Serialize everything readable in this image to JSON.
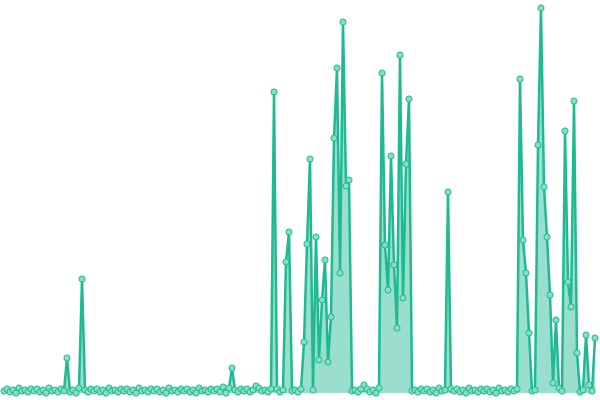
{
  "chart_data": {
    "type": "line",
    "color": "#1fb992",
    "marker_color": "#86dfc4",
    "area": true,
    "markers": true,
    "ylim": [
      0,
      393
    ],
    "values": [
      2,
      4,
      1,
      3,
      0,
      5,
      2,
      3,
      1,
      4,
      2,
      4,
      1,
      3,
      0,
      5,
      2,
      3,
      1,
      4,
      2,
      35,
      1,
      3,
      0,
      5,
      114,
      3,
      1,
      4,
      2,
      4,
      1,
      3,
      0,
      5,
      2,
      3,
      1,
      4,
      2,
      4,
      1,
      3,
      0,
      5,
      2,
      3,
      1,
      4,
      2,
      4,
      1,
      3,
      0,
      5,
      2,
      3,
      1,
      4,
      2,
      4,
      1,
      3,
      0,
      5,
      2,
      3,
      1,
      4,
      2,
      4,
      1,
      6,
      0,
      5,
      25,
      3,
      1,
      4,
      2,
      4,
      1,
      3,
      7,
      5,
      2,
      3,
      1,
      4,
      301,
      4,
      1,
      3,
      131,
      161,
      2,
      3,
      1,
      4,
      51,
      149,
      234,
      3,
      156,
      33,
      93,
      133,
      31,
      76,
      255,
      325,
      120,
      371,
      207,
      213,
      2,
      3,
      1,
      4,
      8,
      4,
      1,
      3,
      0,
      5,
      320,
      148,
      103,
      237,
      128,
      65,
      338,
      95,
      229,
      294,
      2,
      3,
      1,
      4,
      2,
      4,
      1,
      3,
      0,
      5,
      2,
      3,
      201,
      4,
      2,
      4,
      1,
      3,
      0,
      5,
      2,
      3,
      1,
      4,
      2,
      4,
      1,
      3,
      0,
      5,
      2,
      3,
      1,
      4,
      2,
      4,
      314,
      153,
      120,
      60,
      2,
      3,
      248,
      385,
      206,
      156,
      98,
      10,
      73,
      5,
      2,
      262,
      111,
      86,
      292,
      40,
      1,
      3,
      58,
      8,
      2,
      55
    ]
  }
}
